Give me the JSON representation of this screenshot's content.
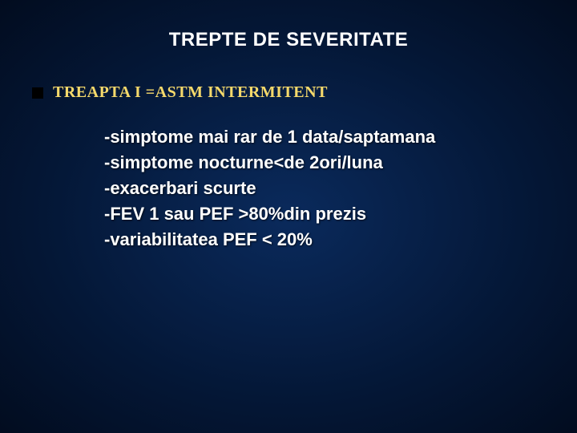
{
  "slide": {
    "title": "TREPTE DE SEVERITATE",
    "bullet": {
      "label": "TREAPTA I =ASTM INTERMITENT",
      "marker_color": "#000000",
      "label_color": "#f5d96b",
      "label_fontsize": 20
    },
    "content": {
      "lines": [
        "-simptome mai rar de 1 data/saptamana",
        "-simptome nocturne<de 2ori/luna",
        "-exacerbari scurte",
        "-FEV 1 sau PEF  >80%din prezis",
        "-variabilitatea PEF < 20%"
      ],
      "text_color": "#ffffff",
      "fontsize": 22
    },
    "background": {
      "center_color": "#0a2a5c",
      "edge_color": "#020c1f"
    },
    "title_style": {
      "fontsize": 24,
      "color": "#ffffff"
    }
  }
}
